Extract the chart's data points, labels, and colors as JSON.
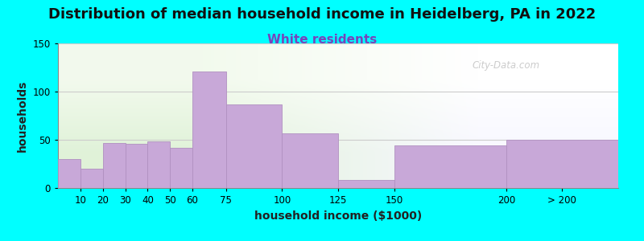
{
  "title": "Distribution of median household income in Heidelberg, PA in 2022",
  "subtitle": "White residents",
  "xlabel": "household income ($1000)",
  "ylabel": "households",
  "background_color": "#00FFFF",
  "bar_color": "#C8A8D8",
  "bar_edge_color": "#b090c0",
  "bin_edges": [
    0,
    10,
    20,
    30,
    40,
    50,
    60,
    75,
    100,
    125,
    150,
    200,
    250
  ],
  "bin_labels": [
    "10",
    "20",
    "30",
    "40",
    "50",
    "60",
    "75",
    "100",
    "125",
    "150",
    "200",
    "> 200"
  ],
  "tick_positions": [
    10,
    20,
    30,
    40,
    50,
    60,
    75,
    100,
    125,
    150,
    200,
    225
  ],
  "values": [
    30,
    20,
    47,
    46,
    48,
    42,
    121,
    87,
    57,
    8,
    44,
    50
  ],
  "ylim": [
    0,
    150
  ],
  "yticks": [
    0,
    50,
    100,
    150
  ],
  "title_fontsize": 13,
  "subtitle_fontsize": 11,
  "subtitle_color": "#7744BB",
  "axis_label_fontsize": 10,
  "tick_fontsize": 8.5,
  "watermark_text": "City-Data.com",
  "watermark_color": "#BBBBBB",
  "bg_left_color": "#e2f0da",
  "bg_right_color": "#f0f0f8"
}
